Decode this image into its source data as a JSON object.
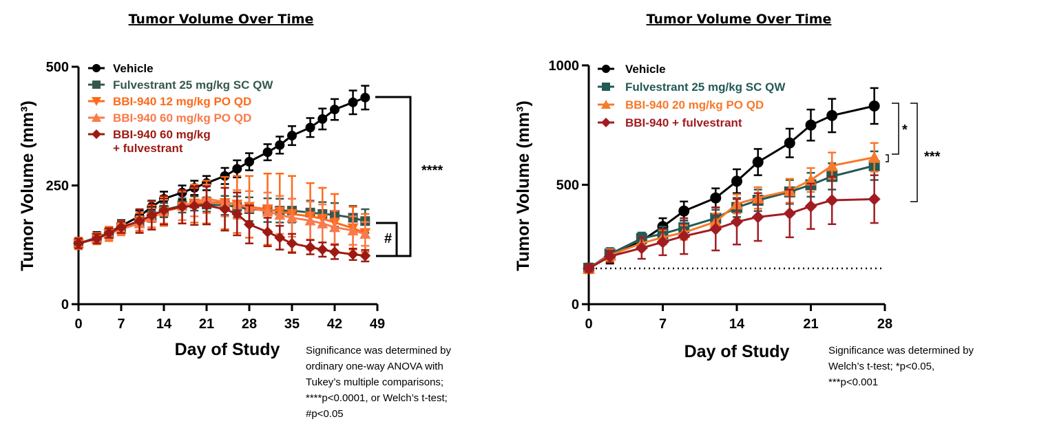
{
  "chart_data": [
    {
      "type": "line",
      "title": "Tumor Volume Over Time",
      "xlabel": "Day of Study",
      "ylabel": "Tumor Volume (mm³)",
      "xlim": [
        0,
        49
      ],
      "ylim": [
        0,
        500
      ],
      "xticks": [
        0,
        7,
        14,
        21,
        28,
        35,
        42,
        49
      ],
      "yticks": [
        0,
        250,
        500
      ],
      "error_bars": true,
      "legend_position": "top-left",
      "series": [
        {
          "name": "Vehicle",
          "color": "#000000",
          "marker": "circle",
          "x": [
            0,
            3,
            5,
            7,
            10,
            12,
            14,
            17,
            19,
            21,
            24,
            26,
            28,
            31,
            33,
            35,
            38,
            40,
            42,
            45,
            47
          ],
          "y": [
            128,
            140,
            150,
            165,
            185,
            205,
            222,
            235,
            245,
            255,
            270,
            285,
            300,
            320,
            335,
            355,
            372,
            390,
            410,
            425,
            435
          ],
          "err": [
            12,
            12,
            12,
            12,
            12,
            13,
            15,
            15,
            15,
            15,
            17,
            18,
            18,
            17,
            18,
            20,
            20,
            22,
            22,
            25,
            25
          ]
        },
        {
          "name": "Fulvestrant 25 mg/kg SC QW",
          "color": "#34584f",
          "marker": "square",
          "x": [
            0,
            3,
            5,
            7,
            10,
            12,
            14,
            17,
            19,
            21,
            24,
            26,
            28,
            31,
            33,
            35,
            38,
            40,
            42,
            45,
            47
          ],
          "y": [
            128,
            140,
            150,
            162,
            173,
            185,
            198,
            208,
            212,
            210,
            208,
            205,
            200,
            198,
            197,
            197,
            193,
            190,
            188,
            182,
            175
          ],
          "err": [
            10,
            10,
            10,
            10,
            10,
            12,
            15,
            15,
            15,
            15,
            20,
            22,
            25,
            25,
            25,
            25,
            25,
            25,
            25,
            25,
            25
          ]
        },
        {
          "name": "BBI-940 12 mg/kg PO QD",
          "color": "#ff6a1a",
          "marker": "triangle-down",
          "x": [
            0,
            3,
            5,
            7,
            10,
            12,
            14,
            17,
            19,
            21,
            24,
            26,
            28,
            31,
            33,
            35,
            38,
            40,
            42,
            45,
            47
          ],
          "y": [
            128,
            138,
            148,
            160,
            172,
            183,
            195,
            205,
            212,
            215,
            213,
            210,
            205,
            200,
            195,
            190,
            185,
            180,
            172,
            160,
            150
          ],
          "err": [
            12,
            12,
            15,
            15,
            20,
            25,
            30,
            35,
            40,
            45,
            55,
            60,
            65,
            75,
            80,
            80,
            70,
            65,
            60,
            45,
            40
          ]
        },
        {
          "name": "BBI-940 60 mg/kg PO QD",
          "color": "#f97a4a",
          "marker": "triangle-up",
          "x": [
            0,
            3,
            5,
            7,
            10,
            12,
            14,
            17,
            19,
            21,
            24,
            26,
            28,
            31,
            33,
            35,
            38,
            40,
            42,
            45,
            47
          ],
          "y": [
            128,
            138,
            148,
            158,
            170,
            182,
            195,
            207,
            215,
            222,
            215,
            210,
            203,
            195,
            188,
            182,
            176,
            170,
            162,
            155,
            148
          ],
          "err": [
            10,
            10,
            12,
            12,
            15,
            20,
            25,
            30,
            30,
            30,
            30,
            30,
            35,
            40,
            40,
            40,
            40,
            40,
            35,
            30,
            25
          ]
        },
        {
          "name": "BBI-940 60 mg/kg\n+ fulvestrant",
          "color": "#9d1a12",
          "marker": "diamond",
          "x": [
            0,
            3,
            5,
            7,
            10,
            12,
            14,
            17,
            19,
            21,
            24,
            26,
            28,
            31,
            33,
            35,
            38,
            40,
            42,
            45,
            47
          ],
          "y": [
            128,
            138,
            150,
            162,
            175,
            187,
            198,
            205,
            207,
            208,
            200,
            190,
            168,
            152,
            140,
            128,
            120,
            115,
            110,
            105,
            102
          ],
          "err": [
            10,
            10,
            10,
            12,
            25,
            30,
            30,
            35,
            40,
            40,
            45,
            45,
            40,
            30,
            25,
            20,
            15,
            15,
            15,
            12,
            12
          ]
        }
      ],
      "significance": [
        {
          "label": "****",
          "between": [
            "Vehicle",
            "treatment groups"
          ]
        },
        {
          "label": "#",
          "between": [
            "Fulvestrant 25 mg/kg SC QW",
            "BBI-940 60 mg/kg + fulvestrant"
          ]
        }
      ]
    },
    {
      "type": "line",
      "title": "Tumor Volume Over Time",
      "xlabel": "Day of Study",
      "ylabel": "Tumor Volume (mm³)",
      "xlim": [
        0,
        28
      ],
      "ylim": [
        0,
        1000
      ],
      "xticks": [
        0,
        7,
        14,
        21,
        28
      ],
      "yticks": [
        0,
        500,
        1000
      ],
      "error_bars": true,
      "baseline_dotted": 150,
      "legend_position": "top-left",
      "series": [
        {
          "name": "Vehicle",
          "color": "#000000",
          "marker": "circle",
          "x": [
            0,
            2,
            5,
            7,
            9,
            12,
            14,
            16,
            19,
            21,
            23,
            27
          ],
          "y": [
            150,
            200,
            265,
            325,
            390,
            445,
            515,
            595,
            675,
            750,
            790,
            830
          ],
          "err": [
            20,
            30,
            30,
            35,
            40,
            40,
            50,
            55,
            60,
            65,
            70,
            75
          ]
        },
        {
          "name": "Fulvestrant 25 mg/kg SC QW",
          "color": "#225a55",
          "marker": "square",
          "x": [
            0,
            2,
            5,
            7,
            9,
            12,
            14,
            16,
            19,
            21,
            23,
            27
          ],
          "y": [
            150,
            210,
            275,
            295,
            320,
            360,
            405,
            435,
            470,
            500,
            535,
            580
          ],
          "err": [
            15,
            25,
            25,
            30,
            30,
            35,
            40,
            45,
            50,
            50,
            55,
            60
          ]
        },
        {
          "name": "BBI-940 20 mg/kg PO QD",
          "color": "#f7792a",
          "marker": "triangle-up",
          "x": [
            0,
            2,
            5,
            7,
            9,
            12,
            14,
            16,
            19,
            21,
            23,
            27
          ],
          "y": [
            150,
            205,
            255,
            280,
            300,
            345,
            420,
            445,
            475,
            520,
            580,
            615
          ],
          "err": [
            15,
            25,
            25,
            30,
            30,
            35,
            40,
            45,
            50,
            50,
            55,
            60
          ]
        },
        {
          "name": "BBI-940 + fulvestrant",
          "color": "#a11c22",
          "marker": "diamond",
          "x": [
            0,
            2,
            5,
            7,
            9,
            12,
            14,
            16,
            19,
            21,
            23,
            27
          ],
          "y": [
            150,
            200,
            235,
            260,
            285,
            315,
            345,
            365,
            380,
            410,
            435,
            440
          ],
          "err": [
            15,
            25,
            45,
            55,
            75,
            90,
            95,
            100,
            100,
            95,
            100,
            100
          ]
        }
      ],
      "significance": [
        {
          "label": "*",
          "between": [
            "Vehicle",
            "Fulvestrant 25 mg/kg SC QW / BBI-940 20 mg/kg PO QD"
          ]
        },
        {
          "label": "***",
          "between": [
            "Vehicle",
            "BBI-940 + fulvestrant"
          ]
        }
      ]
    }
  ],
  "notes": {
    "left": "Significance was determined by\nordinary one-way ANOVA with\nTukey’s multiple comparisons;\n****p<0.0001, or Welch’s t-test;\n#p<0.05",
    "right": "Significance was determined by\nWelch’s t-test; *p<0.05,\n***p<0.001"
  }
}
